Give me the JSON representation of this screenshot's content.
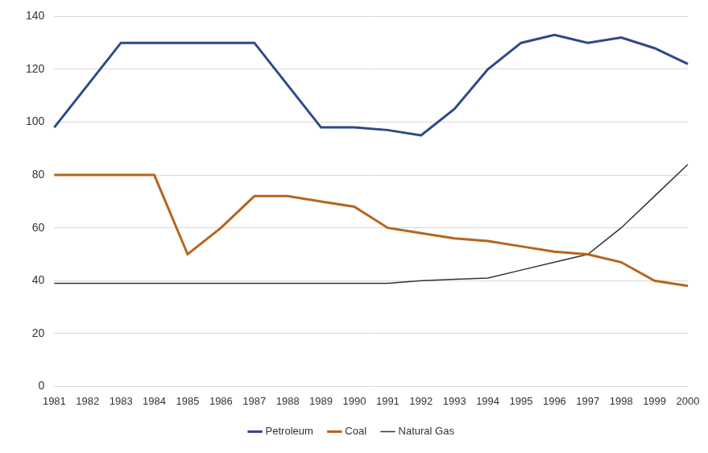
{
  "chart_data": {
    "type": "line",
    "categories": [
      "1981",
      "1982",
      "1983",
      "1984",
      "1985",
      "1986",
      "1987",
      "1988",
      "1989",
      "1990",
      "1991",
      "1992",
      "1993",
      "1994",
      "1995",
      "1996",
      "1997",
      "1998",
      "1999",
      "2000"
    ],
    "series": [
      {
        "name": "Petroleum",
        "color": "#2e4a87",
        "values": [
          98,
          114,
          130,
          130,
          130,
          130,
          130,
          114,
          98,
          98,
          97,
          95,
          105,
          120,
          130,
          133,
          130,
          132,
          128,
          122
        ]
      },
      {
        "name": "Coal",
        "color": "#b5651d",
        "values": [
          80,
          80,
          80,
          80,
          50,
          60,
          72,
          72,
          70,
          68,
          60,
          58,
          56,
          55,
          53,
          51,
          50,
          47,
          40,
          38
        ]
      },
      {
        "name": "Natural Gas",
        "color": "#333333",
        "values": [
          39,
          39,
          39,
          39,
          39,
          39,
          39,
          39,
          39,
          39,
          39,
          40,
          40.5,
          41,
          44,
          47,
          50,
          60,
          72,
          84
        ]
      }
    ],
    "ylim": [
      0,
      140
    ],
    "yticks": [
      0,
      20,
      40,
      60,
      80,
      100,
      120,
      140
    ],
    "grid": true,
    "legend": "bottom"
  }
}
